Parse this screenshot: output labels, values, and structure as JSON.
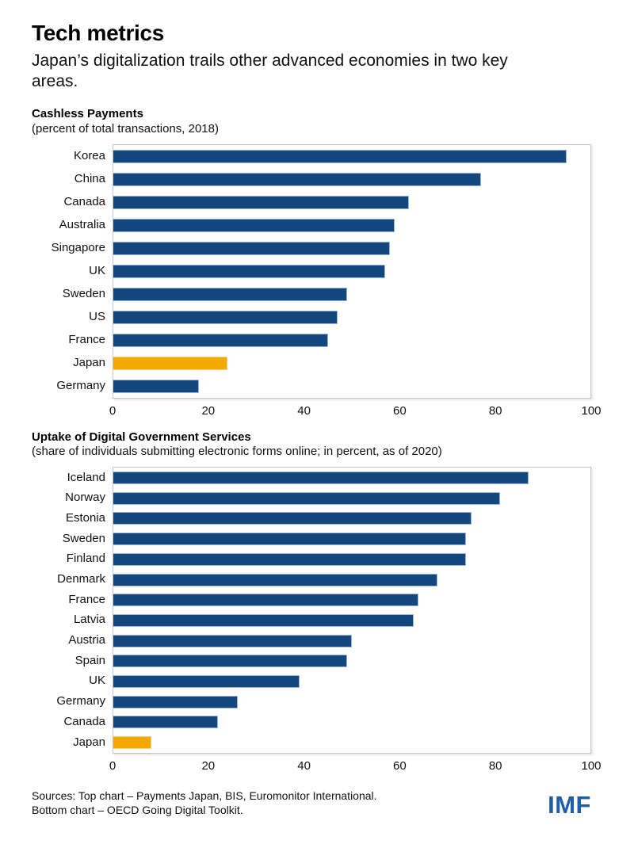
{
  "header": {
    "title": "Tech metrics",
    "subtitle": "Japan’s digitalization trails other advanced economies in two key areas."
  },
  "colors": {
    "bar_blue": "#14477E",
    "bar_gold": "#F2A900",
    "imf_blue": "#1F5EA9"
  },
  "chart_data": [
    {
      "type": "bar",
      "orientation": "horizontal",
      "title": "Cashless Payments",
      "subtitle": "(percent of total transactions, 2018)",
      "categories": [
        "Korea",
        "China",
        "Canada",
        "Australia",
        "Singapore",
        "UK",
        "Sweden",
        "US",
        "France",
        "Japan",
        "Germany"
      ],
      "values": [
        95,
        77,
        62,
        59,
        58,
        57,
        49,
        47,
        45,
        24,
        18
      ],
      "highlight_category": "Japan",
      "xlim": [
        0,
        100
      ],
      "xticks": [
        0,
        20,
        40,
        60,
        80,
        100
      ],
      "grid": false,
      "legend": "none"
    },
    {
      "type": "bar",
      "orientation": "horizontal",
      "title": "Uptake of Digital Government Services",
      "subtitle": "(share of individuals submitting electronic forms online; in percent, as of 2020)",
      "categories": [
        "Iceland",
        "Norway",
        "Estonia",
        "Sweden",
        "Finland",
        "Denmark",
        "France",
        "Latvia",
        "Austria",
        "Spain",
        "UK",
        "Germany",
        "Canada",
        "Japan"
      ],
      "values": [
        87,
        81,
        75,
        74,
        74,
        68,
        64,
        63,
        50,
        49,
        39,
        26,
        22,
        8
      ],
      "highlight_category": "Japan",
      "xlim": [
        0,
        100
      ],
      "xticks": [
        0,
        20,
        40,
        60,
        80,
        100
      ],
      "grid": false,
      "legend": "none"
    }
  ],
  "footer": {
    "sources_line1": "Sources: Top chart – Payments Japan, BIS, Euromonitor International.",
    "sources_line2": "Bottom chart – OECD Going Digital Toolkit.",
    "logo": "IMF"
  }
}
